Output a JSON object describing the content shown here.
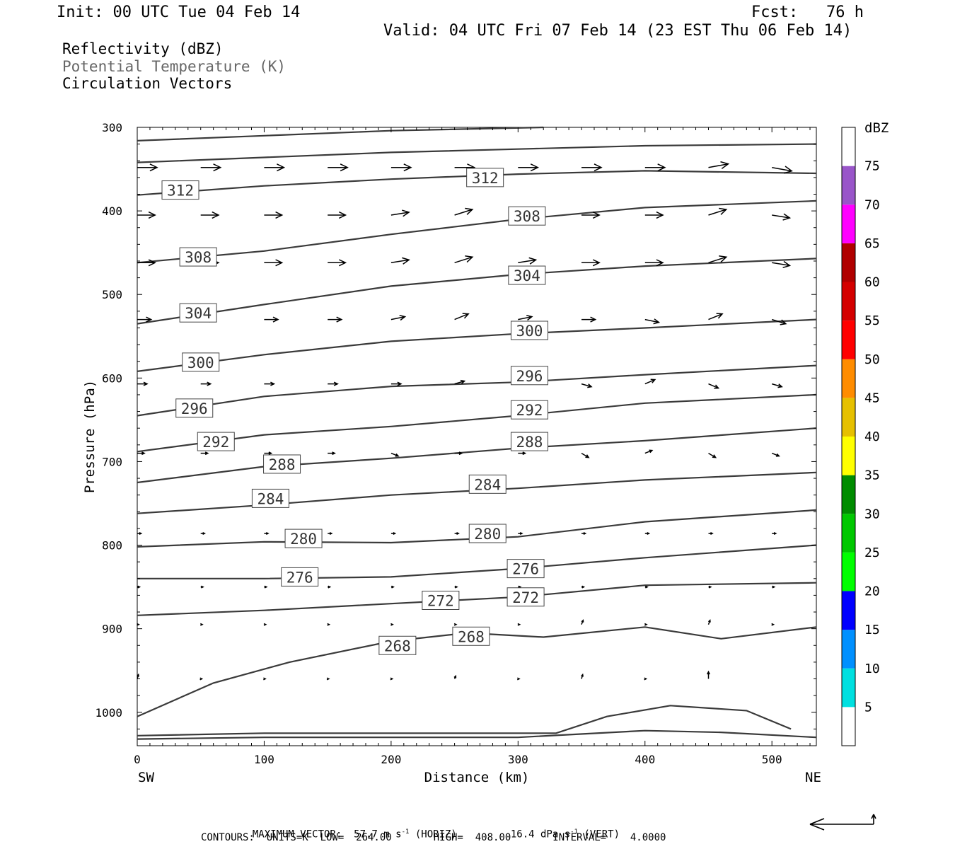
{
  "header": {
    "init": "Init: 00 UTC Tue 04 Feb 14",
    "fcst": "Fcst:   76 h",
    "valid": "Valid: 04 UTC Fri 07 Feb 14 (23 EST Thu 06 Feb 14)"
  },
  "legend": {
    "field1": "Reflectivity (dBZ)",
    "field2": "Potential Temperature (K)",
    "field3": "Circulation Vectors"
  },
  "colors": {
    "contour": "#3a3a3a",
    "vector": "#000000",
    "field2_text": "#666666"
  },
  "chart_data": {
    "type": "cross-section",
    "xlabel": "Distance (km)",
    "ylabel": "Pressure (hPa)",
    "x_ticks": [
      0,
      100,
      200,
      300,
      400,
      500
    ],
    "y_ticks": [
      300,
      400,
      500,
      600,
      700,
      800,
      900,
      1000
    ],
    "xlim": [
      0,
      535
    ],
    "ylim": [
      300,
      1040
    ],
    "y_inverted": true,
    "x_end_labels": {
      "left": "SW",
      "right": "NE"
    },
    "contour_labels": [
      {
        "value": "312",
        "x": 34,
        "p": 375
      },
      {
        "value": "312",
        "x": 274,
        "p": 360
      },
      {
        "value": "308",
        "x": 48,
        "p": 455
      },
      {
        "value": "308",
        "x": 307,
        "p": 406
      },
      {
        "value": "304",
        "x": 48,
        "p": 522
      },
      {
        "value": "304",
        "x": 307,
        "p": 477
      },
      {
        "value": "300",
        "x": 50,
        "p": 581
      },
      {
        "value": "300",
        "x": 309,
        "p": 543
      },
      {
        "value": "296",
        "x": 45,
        "p": 636
      },
      {
        "value": "296",
        "x": 309,
        "p": 597
      },
      {
        "value": "292",
        "x": 62,
        "p": 676
      },
      {
        "value": "292",
        "x": 309,
        "p": 638
      },
      {
        "value": "288",
        "x": 114,
        "p": 703
      },
      {
        "value": "288",
        "x": 309,
        "p": 676
      },
      {
        "value": "284",
        "x": 105,
        "p": 744
      },
      {
        "value": "284",
        "x": 276,
        "p": 727
      },
      {
        "value": "280",
        "x": 131,
        "p": 792
      },
      {
        "value": "280",
        "x": 276,
        "p": 786
      },
      {
        "value": "276",
        "x": 128,
        "p": 838
      },
      {
        "value": "276",
        "x": 306,
        "p": 828
      },
      {
        "value": "272",
        "x": 239,
        "p": 866
      },
      {
        "value": "272",
        "x": 306,
        "p": 862
      },
      {
        "value": "268",
        "x": 205,
        "p": 920
      },
      {
        "value": "268",
        "x": 263,
        "p": 909
      }
    ],
    "contours": [
      [
        [
          0,
          316
        ],
        [
          100,
          310
        ],
        [
          200,
          304
        ],
        [
          320,
          300
        ]
      ],
      [
        [
          0,
          342
        ],
        [
          100,
          336
        ],
        [
          200,
          330
        ],
        [
          300,
          326
        ],
        [
          400,
          322
        ],
        [
          535,
          320
        ]
      ],
      [
        [
          0,
          381
        ],
        [
          100,
          370
        ],
        [
          200,
          362
        ],
        [
          300,
          356
        ],
        [
          400,
          352
        ],
        [
          535,
          355
        ]
      ],
      [
        [
          0,
          462
        ],
        [
          100,
          448
        ],
        [
          200,
          428
        ],
        [
          300,
          410
        ],
        [
          400,
          396
        ],
        [
          535,
          388
        ]
      ],
      [
        [
          0,
          535
        ],
        [
          100,
          512
        ],
        [
          200,
          490
        ],
        [
          300,
          476
        ],
        [
          400,
          466
        ],
        [
          535,
          457
        ]
      ],
      [
        [
          0,
          592
        ],
        [
          100,
          572
        ],
        [
          200,
          556
        ],
        [
          300,
          547
        ],
        [
          400,
          540
        ],
        [
          535,
          530
        ]
      ],
      [
        [
          0,
          645
        ],
        [
          100,
          622
        ],
        [
          200,
          610
        ],
        [
          300,
          605
        ],
        [
          400,
          596
        ],
        [
          535,
          585
        ]
      ],
      [
        [
          0,
          688
        ],
        [
          100,
          668
        ],
        [
          200,
          658
        ],
        [
          300,
          645
        ],
        [
          400,
          630
        ],
        [
          535,
          620
        ]
      ],
      [
        [
          0,
          725
        ],
        [
          100,
          706
        ],
        [
          200,
          696
        ],
        [
          300,
          684
        ],
        [
          400,
          675
        ],
        [
          535,
          660
        ]
      ],
      [
        [
          0,
          762
        ],
        [
          100,
          752
        ],
        [
          200,
          740
        ],
        [
          300,
          732
        ],
        [
          400,
          722
        ],
        [
          535,
          713
        ]
      ],
      [
        [
          0,
          802
        ],
        [
          100,
          796
        ],
        [
          200,
          797
        ],
        [
          300,
          790
        ],
        [
          400,
          772
        ],
        [
          535,
          758
        ]
      ],
      [
        [
          0,
          840
        ],
        [
          100,
          840
        ],
        [
          200,
          838
        ],
        [
          300,
          828
        ],
        [
          400,
          815
        ],
        [
          535,
          800
        ]
      ],
      [
        [
          0,
          884
        ],
        [
          100,
          878
        ],
        [
          200,
          870
        ],
        [
          300,
          862
        ],
        [
          400,
          848
        ],
        [
          535,
          845
        ]
      ],
      [
        [
          0,
          1005
        ],
        [
          60,
          965
        ],
        [
          120,
          940
        ],
        [
          200,
          915
        ],
        [
          260,
          905
        ],
        [
          320,
          910
        ],
        [
          400,
          898
        ],
        [
          460,
          912
        ],
        [
          535,
          898
        ]
      ],
      [
        [
          0,
          1028
        ],
        [
          100,
          1025
        ],
        [
          200,
          1025
        ],
        [
          300,
          1025
        ],
        [
          330,
          1025
        ],
        [
          370,
          1005
        ],
        [
          420,
          992
        ],
        [
          480,
          998
        ],
        [
          515,
          1020
        ]
      ],
      [
        [
          0,
          1032
        ],
        [
          100,
          1030
        ],
        [
          200,
          1030
        ],
        [
          300,
          1030
        ],
        [
          400,
          1022
        ],
        [
          460,
          1024
        ],
        [
          535,
          1030
        ]
      ]
    ],
    "vectors": [
      {
        "p": 348,
        "x": [
          0,
          50,
          100,
          150,
          200,
          250,
          300,
          350,
          400,
          450,
          500
        ],
        "u": [
          50,
          50,
          50,
          50,
          50,
          50,
          50,
          50,
          50,
          50,
          50
        ],
        "w": [
          0,
          0,
          0,
          0,
          0,
          0,
          0,
          0,
          0,
          -5,
          5
        ]
      },
      {
        "p": 405,
        "x": [
          0,
          50,
          100,
          150,
          200,
          250,
          300,
          350,
          400,
          450,
          500
        ],
        "u": [
          45,
          45,
          45,
          45,
          45,
          45,
          45,
          45,
          45,
          45,
          45
        ],
        "w": [
          0,
          0,
          0,
          0,
          -4,
          -8,
          -4,
          0,
          0,
          -8,
          4
        ]
      },
      {
        "p": 462,
        "x": [
          0,
          50,
          100,
          150,
          200,
          250,
          300,
          350,
          400,
          450,
          500
        ],
        "u": [
          45,
          45,
          45,
          45,
          45,
          45,
          45,
          45,
          45,
          45,
          45
        ],
        "w": [
          0,
          0,
          0,
          0,
          -4,
          -8,
          -4,
          0,
          0,
          -8,
          4
        ]
      },
      {
        "p": 530,
        "x": [
          0,
          50,
          100,
          150,
          200,
          250,
          300,
          350,
          400,
          450,
          500
        ],
        "u": [
          35,
          35,
          35,
          35,
          35,
          35,
          35,
          35,
          35,
          35,
          35
        ],
        "w": [
          0,
          0,
          0,
          0,
          -4,
          -8,
          -4,
          0,
          4,
          -8,
          6
        ]
      },
      {
        "p": 607,
        "x": [
          0,
          50,
          100,
          150,
          200,
          250,
          300,
          350,
          400,
          450,
          500
        ],
        "u": [
          25,
          25,
          25,
          25,
          25,
          25,
          25,
          25,
          25,
          25,
          25
        ],
        "w": [
          0,
          0,
          0,
          0,
          0,
          -4,
          -4,
          4,
          -6,
          6,
          4
        ]
      },
      {
        "p": 690,
        "x": [
          0,
          50,
          100,
          150,
          200,
          250,
          300,
          350,
          400,
          450,
          500
        ],
        "u": [
          18,
          18,
          18,
          18,
          18,
          18,
          18,
          18,
          18,
          18,
          18
        ],
        "w": [
          0,
          0,
          0,
          0,
          4,
          0,
          0,
          6,
          -4,
          6,
          4
        ]
      },
      {
        "p": 786,
        "x": [
          0,
          50,
          100,
          150,
          200,
          250,
          300,
          350,
          400,
          450,
          500
        ],
        "u": [
          10,
          10,
          10,
          10,
          10,
          10,
          10,
          10,
          10,
          10,
          10
        ],
        "w": [
          0,
          0,
          0,
          0,
          0,
          0,
          0,
          0,
          0,
          0,
          0
        ]
      },
      {
        "p": 850,
        "x": [
          0,
          50,
          100,
          150,
          200,
          250,
          300,
          350,
          400,
          450,
          500
        ],
        "u": [
          6,
          6,
          6,
          6,
          6,
          6,
          6,
          6,
          6,
          6,
          6
        ],
        "w": [
          0,
          0,
          0,
          0,
          0,
          0,
          0,
          0,
          0,
          0,
          0
        ]
      },
      {
        "p": 895,
        "x": [
          0,
          50,
          100,
          150,
          200,
          250,
          300,
          350,
          400,
          450,
          500
        ],
        "u": [
          4,
          4,
          4,
          4,
          4,
          4,
          4,
          4,
          4,
          4,
          4
        ],
        "w": [
          0,
          0,
          0,
          0,
          0,
          0,
          0,
          -6,
          0,
          -6,
          0
        ]
      },
      {
        "p": 960,
        "x": [
          0,
          50,
          100,
          150,
          200,
          250,
          300,
          350,
          400,
          450,
          500
        ],
        "u": [
          3,
          3,
          3,
          3,
          3,
          3,
          3,
          3,
          3,
          0,
          0
        ],
        "w": [
          -6,
          0,
          0,
          0,
          0,
          -4,
          0,
          -6,
          0,
          -10,
          0
        ]
      }
    ],
    "colorbar": {
      "label": "dBZ",
      "ticks": [
        "5",
        "10",
        "15",
        "20",
        "25",
        "30",
        "35",
        "40",
        "45",
        "50",
        "55",
        "60",
        "65",
        "70",
        "75"
      ],
      "colors": [
        "#ffffff",
        "#00e0e0",
        "#0090ff",
        "#0000ff",
        "#00ff00",
        "#00c800",
        "#008c00",
        "#ffff00",
        "#e6c000",
        "#ff8c00",
        "#ff0000",
        "#d40000",
        "#b00000",
        "#ff00ff",
        "#9955c9",
        "#ffffff"
      ]
    }
  },
  "footer": {
    "max_vector": "MAXIMUM VECTOR:  57.7 m s",
    "horiz": " (HORIZ)",
    "vert_val": "16.4 dPa s",
    "vert": " (VERT)",
    "exp": "-1",
    "contours": "CONTOURS:  UNITS=K  LOW=  264.00       HIGH=  408.00       INTERVAL=    4.0000"
  }
}
